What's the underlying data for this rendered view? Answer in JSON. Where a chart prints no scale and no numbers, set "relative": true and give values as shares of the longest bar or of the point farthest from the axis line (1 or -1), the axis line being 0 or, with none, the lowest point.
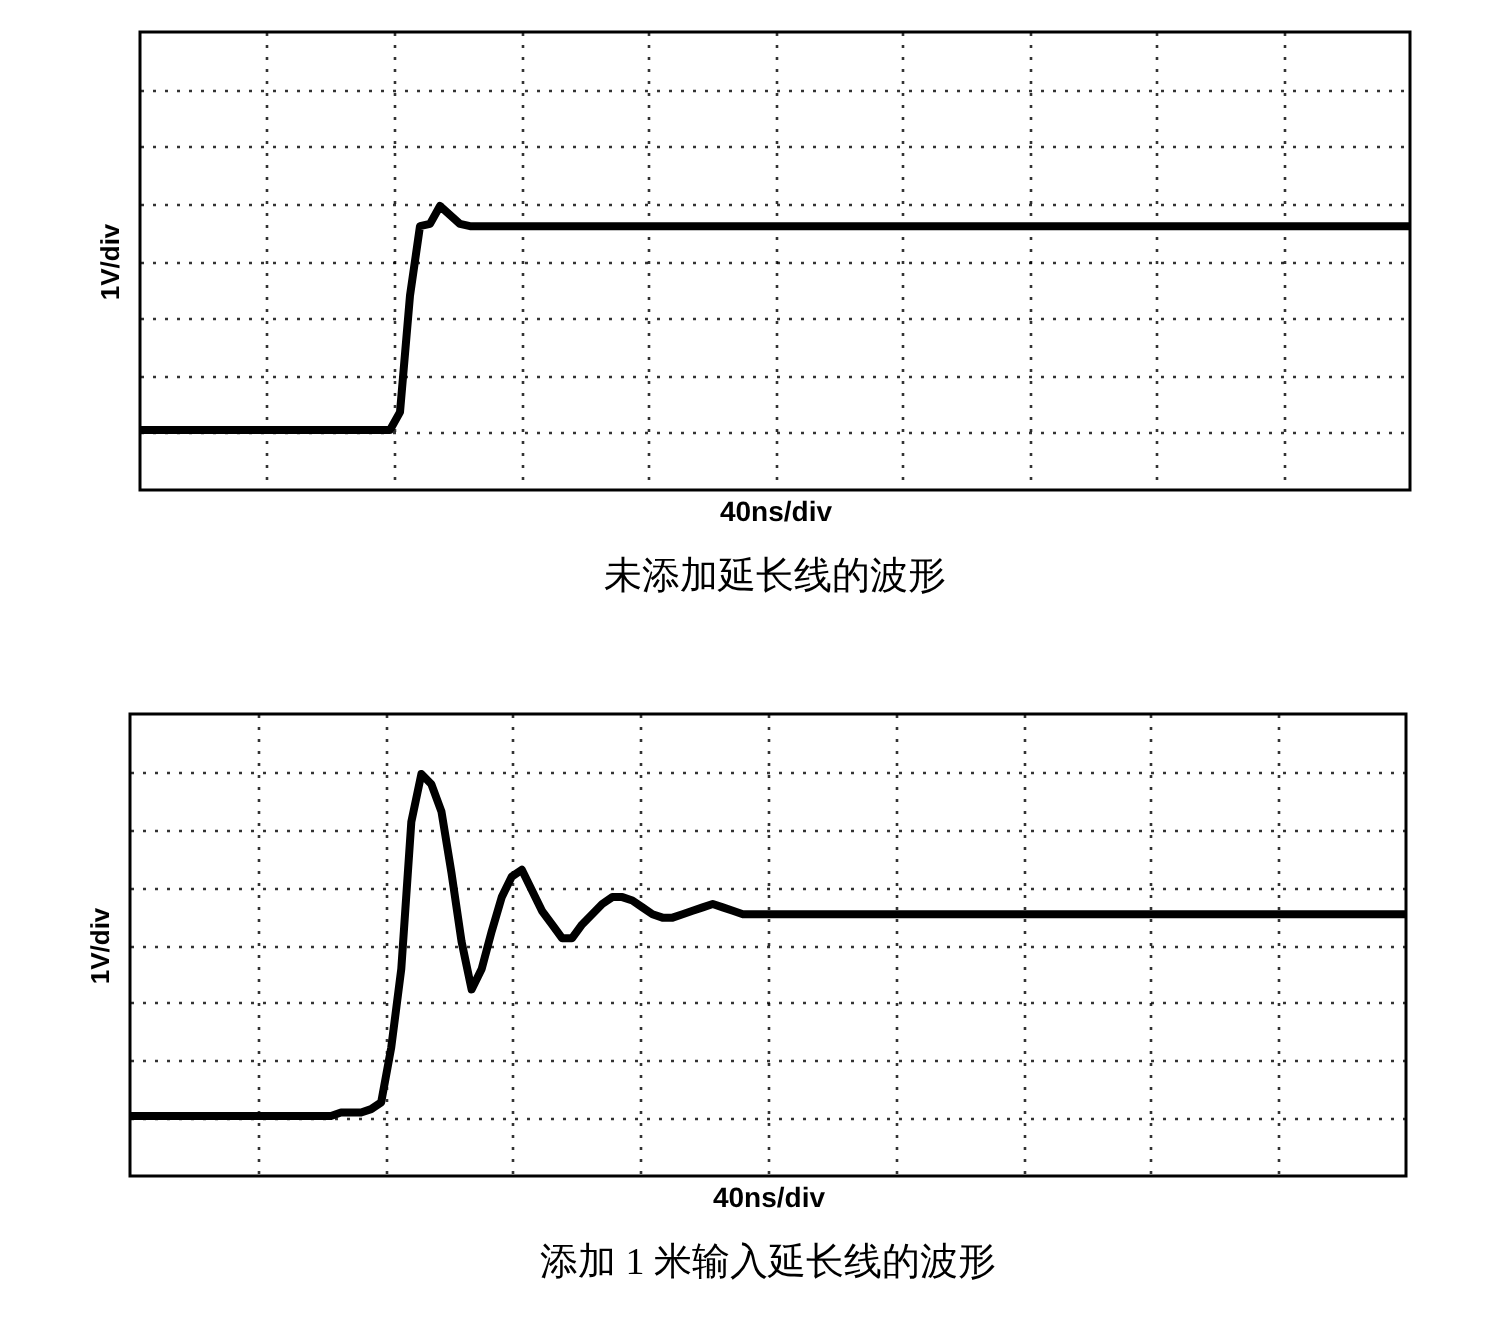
{
  "chart_data": [
    {
      "type": "line",
      "title": "未添加延长线的波形",
      "xlabel": "40ns/div",
      "ylabel": "1V/div",
      "relative": true,
      "grid": true,
      "categories": [
        null,
        null,
        null,
        null,
        null,
        null,
        null,
        null,
        null,
        null,
        null,
        null,
        null,
        null,
        null,
        null,
        null,
        null,
        null,
        null,
        null,
        null,
        null,
        null,
        null,
        null,
        null,
        null,
        null,
        null,
        null,
        null,
        null,
        null,
        null,
        null,
        null,
        null,
        null,
        null,
        null,
        null,
        null,
        null,
        null,
        null,
        null,
        null,
        null,
        null,
        null,
        null,
        null,
        null,
        null,
        null,
        null,
        null,
        null,
        null,
        null,
        null,
        null,
        null,
        null,
        null,
        null,
        null,
        null,
        null,
        null,
        null,
        null,
        null,
        null,
        null,
        null,
        null,
        null,
        null,
        null,
        null,
        null,
        null,
        null,
        null,
        null,
        null,
        null,
        null,
        null,
        null,
        null,
        null,
        null,
        null,
        null,
        null,
        null,
        null,
        null,
        null,
        null,
        null,
        null,
        null,
        null,
        null,
        null,
        null,
        null,
        null,
        null,
        null,
        null,
        null,
        null,
        null,
        null,
        null,
        null,
        null,
        null,
        null,
        null,
        null,
        null,
        null
      ],
      "series": [
        {
          "color": "#000000",
          "values": [
            0,
            0,
            0,
            0,
            0,
            0,
            0,
            0,
            0,
            0,
            0,
            0,
            0,
            0,
            0,
            0,
            0,
            0,
            0,
            0,
            0,
            0,
            0,
            0,
            0,
            0,
            0.08,
            0.6,
            0.91,
            0.92,
            1,
            0.96,
            0.92,
            0.91,
            0.91,
            0.91,
            0.91,
            0.91,
            0.91,
            0.91,
            0.91,
            0.91,
            0.91,
            0.91,
            0.91,
            0.91,
            0.91,
            0.91,
            0.91,
            0.91,
            0.91,
            0.91,
            0.91,
            0.91,
            0.91,
            0.91,
            0.91,
            0.91,
            0.91,
            0.91,
            0.91,
            0.91,
            0.91,
            0.91,
            0.91,
            0.91,
            0.91,
            0.91,
            0.91,
            0.91,
            0.91,
            0.91,
            0.91,
            0.91,
            0.91,
            0.91,
            0.91,
            0.91,
            0.91,
            0.91,
            0.91,
            0.91,
            0.91,
            0.91,
            0.91,
            0.91,
            0.91,
            0.91,
            0.91,
            0.91,
            0.91,
            0.91,
            0.91,
            0.91,
            0.91,
            0.91,
            0.91,
            0.91,
            0.91,
            0.91,
            0.91,
            0.91,
            0.91,
            0.91,
            0.91,
            0.91,
            0.91,
            0.91,
            0.91,
            0.91,
            0.91,
            0.91,
            0.91,
            0.91,
            0.91,
            0.91,
            0.91,
            0.91,
            0.91,
            0.91,
            0.91,
            0.91,
            0.91,
            0.91,
            0.91,
            0.91,
            0.91,
            0.91
          ]
        }
      ]
    },
    {
      "type": "line",
      "title": "添加 1 米输入延长线的波形",
      "xlabel": "40ns/div",
      "ylabel": "1V/div",
      "relative": true,
      "grid": true,
      "categories": [
        null,
        null,
        null,
        null,
        null,
        null,
        null,
        null,
        null,
        null,
        null,
        null,
        null,
        null,
        null,
        null,
        null,
        null,
        null,
        null,
        null,
        null,
        null,
        null,
        null,
        null,
        null,
        null,
        null,
        null,
        null,
        null,
        null,
        null,
        null,
        null,
        null,
        null,
        null,
        null,
        null,
        null,
        null,
        null,
        null,
        null,
        null,
        null,
        null,
        null,
        null,
        null,
        null,
        null,
        null,
        null,
        null,
        null,
        null,
        null,
        null,
        null,
        null,
        null,
        null,
        null,
        null,
        null,
        null,
        null,
        null,
        null,
        null,
        null,
        null,
        null,
        null,
        null,
        null,
        null,
        null,
        null,
        null,
        null,
        null,
        null,
        null,
        null,
        null,
        null,
        null,
        null,
        null,
        null,
        null,
        null,
        null,
        null,
        null,
        null,
        null,
        null,
        null,
        null,
        null,
        null,
        null,
        null,
        null,
        null,
        null,
        null,
        null,
        null,
        null,
        null,
        null,
        null,
        null,
        null,
        null,
        null,
        null,
        null,
        null,
        null,
        null,
        null
      ],
      "series": [
        {
          "color": "#000000",
          "values": [
            0,
            0,
            0,
            0,
            0,
            0,
            0,
            0,
            0,
            0,
            0,
            0,
            0,
            0,
            0,
            0,
            0,
            0,
            0,
            0,
            0,
            0.01,
            0.01,
            0.01,
            0.02,
            0.04,
            0.2,
            0.43,
            0.86,
            1,
            0.97,
            0.89,
            0.71,
            0.51,
            0.37,
            0.43,
            0.54,
            0.64,
            0.7,
            0.72,
            0.66,
            0.6,
            0.56,
            0.52,
            0.52,
            0.56,
            0.59,
            0.62,
            0.64,
            0.64,
            0.63,
            0.61,
            0.59,
            0.58,
            0.58,
            0.59,
            0.6,
            0.61,
            0.62,
            0.61,
            0.6,
            0.59,
            0.59,
            0.59,
            0.59,
            0.59,
            0.59,
            0.59,
            0.59,
            0.59,
            0.59,
            0.59,
            0.59,
            0.59,
            0.59,
            0.59,
            0.59,
            0.59,
            0.59,
            0.59,
            0.59,
            0.59,
            0.59,
            0.59,
            0.59,
            0.59,
            0.59,
            0.59,
            0.59,
            0.59,
            0.59,
            0.59,
            0.59,
            0.59,
            0.59,
            0.59,
            0.59,
            0.59,
            0.59,
            0.59,
            0.59,
            0.59,
            0.59,
            0.59,
            0.59,
            0.59,
            0.59,
            0.59,
            0.59,
            0.59,
            0.59,
            0.59,
            0.59,
            0.59,
            0.59,
            0.59,
            0.59,
            0.59,
            0.59,
            0.59,
            0.59,
            0.59,
            0.59,
            0.59,
            0.59,
            0.59,
            0.59,
            0.59
          ]
        }
      ]
    }
  ]
}
